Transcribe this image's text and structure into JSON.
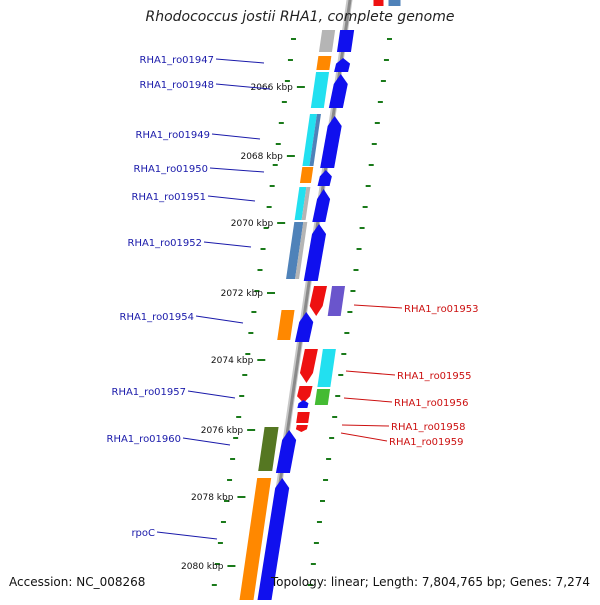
{
  "title": "Rhodococcus jostii RHA1, complete genome",
  "footer": {
    "accession": "Accession: NC_008268",
    "summary": "Topology: linear; Length: 7,804,765 bp; Genes: 7,274"
  },
  "colors": {
    "label_left": "#1a1aaa",
    "label_right": "#cc1111",
    "tick": "#1a7a1a",
    "axis": "#8a8a8a",
    "blue": "#1010ee",
    "orange": "#ff8800",
    "cyan": "#22e0f0",
    "red": "#ee1111",
    "purple": "#6a55cc",
    "green": "#44bb33",
    "olive": "#557722",
    "steel": "#4f82b9",
    "gray": "#b5b5b5"
  },
  "kbp_labels": [
    "2066 kbp",
    "2068 kbp",
    "2070 kbp",
    "2072 kbp",
    "2074 kbp",
    "2076 kbp",
    "2078 kbp",
    "2080 kbp"
  ],
  "genes_left": [
    "RHA1_ro01947",
    "RHA1_ro01948",
    "RHA1_ro01949",
    "RHA1_ro01950",
    "RHA1_ro01951",
    "RHA1_ro01952",
    "RHA1_ro01954",
    "RHA1_ro01957",
    "RHA1_ro01960",
    "rpoC"
  ],
  "genes_right": [
    "RHA1_ro01953",
    "RHA1_ro01955",
    "RHA1_ro01956",
    "RHA1_ro01958",
    "RHA1_ro01959"
  ]
}
